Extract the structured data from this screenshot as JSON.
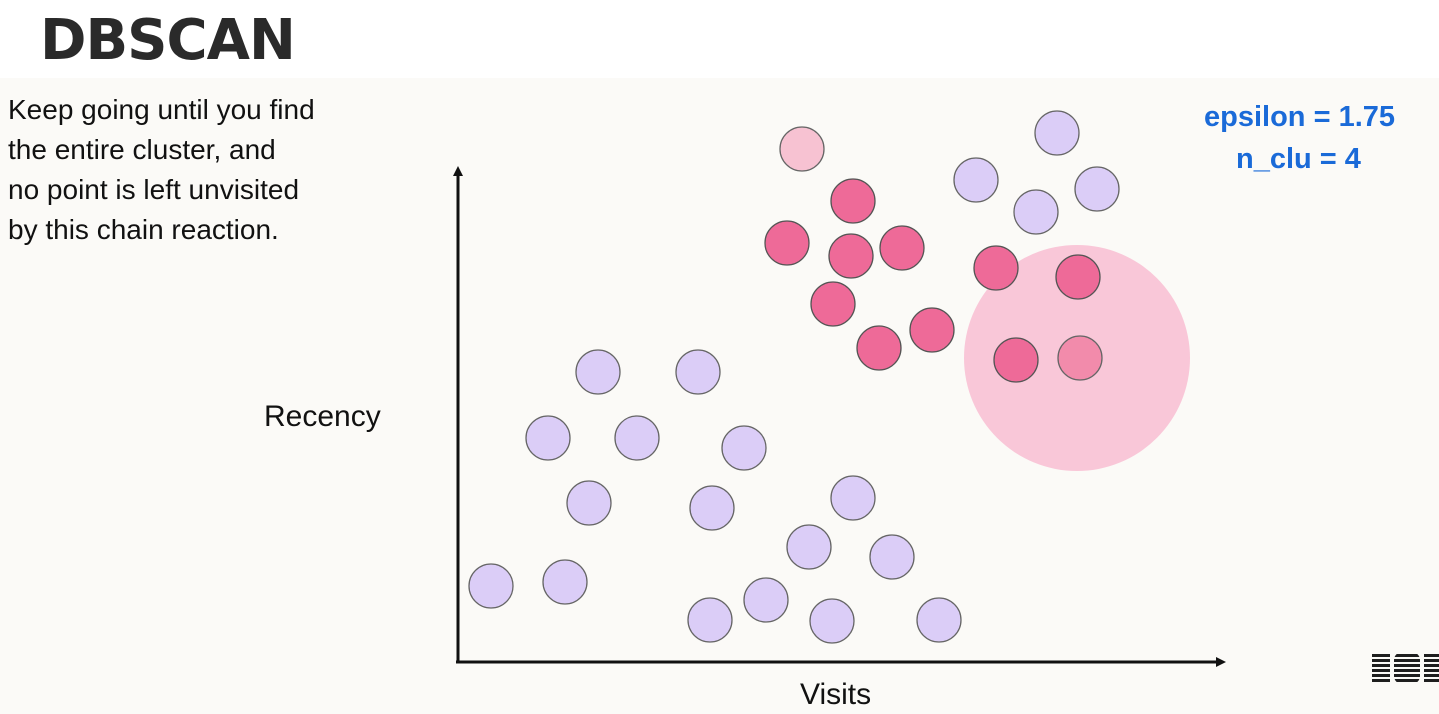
{
  "title": "DBSCAN",
  "caption": [
    "Keep going until you find",
    "the entire cluster, and",
    "no point is left unvisited",
    "by this chain reaction."
  ],
  "params": {
    "epsilon": "epsilon = 1.75",
    "n_clu": "n_clu = 4"
  },
  "axes": {
    "y_label": "Recency",
    "x_label": "Visits"
  },
  "colors": {
    "visited_core": "#ee6a98",
    "light_pink": "#f7c2d2",
    "unvisited": "#dbcdf7",
    "epsilon_region": "#f9c4d6",
    "current_point": "#f28bab",
    "params_text": "#1a6ad8"
  },
  "logo": {
    "text": "IBM",
    "icon": "ibm-logo"
  }
}
